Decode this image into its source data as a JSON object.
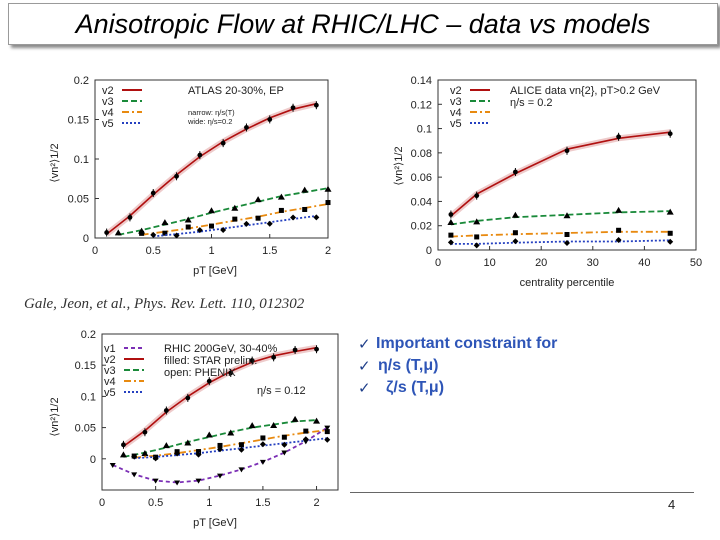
{
  "slide": {
    "title": "Anisotropic Flow at RHIC/LHC – data vs models",
    "citation": "Gale, Jeon, et al., Phys. Rev. Lett. 110, 012302",
    "page_number": "4",
    "bullets": [
      {
        "check": "✓",
        "label": "Important constraint for"
      },
      {
        "check": "✓",
        "label": "η/s (T,μ)"
      },
      {
        "check": "✓",
        "label": "ζ/s (T,μ)"
      }
    ]
  },
  "colors": {
    "v1": "#7b2fb5",
    "v2": "#b01010",
    "v3": "#1a8a3a",
    "v4": "#e88a10",
    "v5": "#2540c0",
    "accent": "#2e55b7"
  },
  "chart_data": [
    {
      "type": "line",
      "legend": [
        "v2",
        "v3",
        "v4",
        "v5"
      ],
      "annotation": [
        "ATLAS 20-30%, EP",
        "narrow: η/s(T)",
        "wide: η/s=0.2"
      ],
      "xlabel": "pT [GeV]",
      "ylabel": "⟨vn²⟩1/2",
      "xlim": [
        0,
        2
      ],
      "ylim": [
        0,
        0.2
      ],
      "xticks": [
        "0",
        "0.5",
        "1",
        "1.5",
        "2"
      ],
      "yticks": [
        "0",
        "0.05",
        "0.1",
        "0.15",
        "0.2"
      ],
      "series": [
        {
          "name": "v2",
          "x": [
            0.1,
            0.3,
            0.5,
            0.7,
            0.9,
            1.1,
            1.3,
            1.5,
            1.7,
            1.9
          ],
          "y": [
            0.005,
            0.028,
            0.055,
            0.08,
            0.103,
            0.122,
            0.138,
            0.152,
            0.163,
            0.17
          ]
        },
        {
          "name": "v3",
          "x": [
            0.2,
            0.4,
            0.6,
            0.8,
            1.0,
            1.2,
            1.4,
            1.6,
            1.8,
            2.0
          ],
          "y": [
            0.004,
            0.01,
            0.017,
            0.024,
            0.032,
            0.039,
            0.046,
            0.053,
            0.058,
            0.063
          ]
        },
        {
          "name": "v4",
          "x": [
            0.4,
            0.6,
            0.8,
            1.0,
            1.2,
            1.4,
            1.6,
            1.8,
            2.0
          ],
          "y": [
            0.004,
            0.008,
            0.012,
            0.017,
            0.022,
            0.027,
            0.033,
            0.038,
            0.043
          ]
        },
        {
          "name": "v5",
          "x": [
            0.5,
            0.7,
            0.9,
            1.1,
            1.3,
            1.5,
            1.7,
            1.9
          ],
          "y": [
            0.002,
            0.005,
            0.008,
            0.012,
            0.016,
            0.02,
            0.024,
            0.028
          ]
        }
      ]
    },
    {
      "type": "line",
      "legend": [
        "v2",
        "v3",
        "v4",
        "v5"
      ],
      "annotation": [
        "ALICE data vn{2}, pT>0.2 GeV",
        "η/s = 0.2"
      ],
      "xlabel": "centrality percentile",
      "ylabel": "⟨vn²⟩1/2",
      "xlim": [
        0,
        50
      ],
      "ylim": [
        0,
        0.14
      ],
      "xticks": [
        "0",
        "10",
        "20",
        "30",
        "40",
        "50"
      ],
      "yticks": [
        "0",
        "0.02",
        "0.04",
        "0.06",
        "0.08",
        "0.1",
        "0.12",
        "0.14"
      ],
      "series": [
        {
          "name": "v2",
          "x": [
            2.5,
            7.5,
            15,
            25,
            35,
            45
          ],
          "y": [
            0.028,
            0.046,
            0.063,
            0.083,
            0.092,
            0.097
          ]
        },
        {
          "name": "v3",
          "x": [
            2.5,
            7.5,
            15,
            25,
            35,
            45
          ],
          "y": [
            0.021,
            0.024,
            0.027,
            0.029,
            0.031,
            0.032
          ]
        },
        {
          "name": "v4",
          "x": [
            2.5,
            7.5,
            15,
            25,
            35,
            45
          ],
          "y": [
            0.011,
            0.012,
            0.013,
            0.014,
            0.015,
            0.015
          ]
        },
        {
          "name": "v5",
          "x": [
            2.5,
            7.5,
            15,
            25,
            35,
            45
          ],
          "y": [
            0.005,
            0.005,
            0.006,
            0.007,
            0.007,
            0.008
          ]
        }
      ]
    },
    {
      "type": "line",
      "legend": [
        "v1",
        "v2",
        "v3",
        "v4",
        "v5"
      ],
      "annotation": [
        "RHIC 200GeV, 30-40%",
        "filled: STAR prelim.",
        "open: PHENIX",
        "η/s = 0.12"
      ],
      "xlabel": "pT [GeV]",
      "ylabel": "⟨vn²⟩1/2",
      "xlim": [
        0,
        2.2
      ],
      "ylim": [
        -0.05,
        0.2
      ],
      "xticks": [
        "0",
        "0.5",
        "1",
        "1.5",
        "2"
      ],
      "yticks": [
        "0",
        "0.05",
        "0.1",
        "0.15",
        "0.2"
      ],
      "series": [
        {
          "name": "v1",
          "x": [
            0.1,
            0.3,
            0.5,
            0.7,
            0.9,
            1.1,
            1.3,
            1.5,
            1.7,
            1.9,
            2.1
          ],
          "y": [
            -0.01,
            -0.025,
            -0.035,
            -0.038,
            -0.035,
            -0.027,
            -0.017,
            -0.005,
            0.01,
            0.028,
            0.05
          ]
        },
        {
          "name": "v2",
          "x": [
            0.2,
            0.4,
            0.6,
            0.8,
            1.0,
            1.2,
            1.4,
            1.6,
            1.8,
            2.0
          ],
          "y": [
            0.02,
            0.045,
            0.075,
            0.1,
            0.122,
            0.14,
            0.155,
            0.165,
            0.172,
            0.178
          ]
        },
        {
          "name": "v3",
          "x": [
            0.2,
            0.4,
            0.6,
            0.8,
            1.0,
            1.2,
            1.4,
            1.6,
            1.8,
            2.0
          ],
          "y": [
            0.003,
            0.01,
            0.018,
            0.027,
            0.035,
            0.043,
            0.05,
            0.055,
            0.06,
            0.062
          ]
        },
        {
          "name": "v4",
          "x": [
            0.3,
            0.5,
            0.7,
            0.9,
            1.1,
            1.3,
            1.5,
            1.7,
            1.9,
            2.1
          ],
          "y": [
            0.002,
            0.005,
            0.009,
            0.014,
            0.019,
            0.025,
            0.031,
            0.037,
            0.042,
            0.046
          ]
        },
        {
          "name": "v5",
          "x": [
            0.3,
            0.5,
            0.7,
            0.9,
            1.1,
            1.3,
            1.5,
            1.7,
            1.9,
            2.1
          ],
          "y": [
            0.001,
            0.003,
            0.006,
            0.009,
            0.013,
            0.017,
            0.021,
            0.025,
            0.029,
            0.033
          ]
        }
      ]
    }
  ]
}
